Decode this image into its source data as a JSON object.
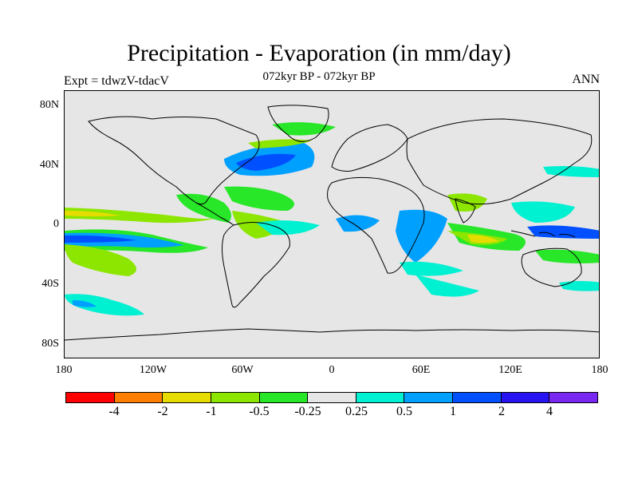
{
  "title": "Precipitation - Evaporation (in mm/day)",
  "subtitle": "072kyr BP - 072kyr BP",
  "experiment_label": "Expt = tdwzV-tdacV",
  "season_label": "ANN",
  "map": {
    "projection": "cylindrical equidistant",
    "background_color": "#e6e6e6",
    "lat_ticks": [
      "80N",
      "40N",
      "0",
      "40S",
      "80S"
    ],
    "lon_ticks": [
      "180",
      "120W",
      "60W",
      "0",
      "60E",
      "120E",
      "180"
    ]
  },
  "colorbar": {
    "colors": [
      "#ff0000",
      "#ff8000",
      "#e6dc00",
      "#8ce600",
      "#28e628",
      "#e6e6e6",
      "#00f0d2",
      "#00a0ff",
      "#0050ff",
      "#2814f0",
      "#7828f0"
    ],
    "labels": [
      "-4",
      "-2",
      "-1",
      "-0.5",
      "-0.25",
      "0.25",
      "0.5",
      "1",
      "2",
      "4"
    ]
  }
}
